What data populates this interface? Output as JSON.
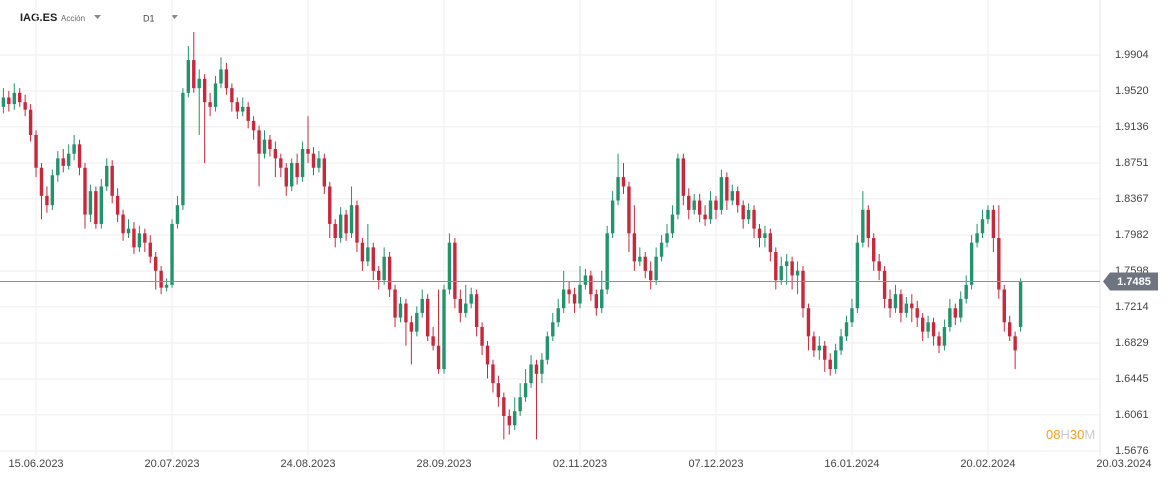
{
  "toolbar": {
    "symbol": "IAG.ES",
    "kind": "Acción",
    "timeframe": "D1"
  },
  "countdown": [
    "08",
    "H",
    "30",
    "M"
  ],
  "chart_data": {
    "type": "candlestick",
    "up_color": "#22936a",
    "down_color": "#c8283c",
    "last_price": 1.7485,
    "xlim": [
      -0.625,
      201.6
    ],
    "xticks": [
      {
        "value": 6,
        "label": "15.06.2023"
      },
      {
        "value": 31,
        "label": "20.07.2023"
      },
      {
        "value": 56,
        "label": "24.08.2023"
      },
      {
        "value": 81,
        "label": "28.09.2023"
      },
      {
        "value": 106,
        "label": "02.11.2023"
      },
      {
        "value": 131,
        "label": "07.12.2023"
      },
      {
        "value": 156,
        "label": "16.01.2024"
      },
      {
        "value": 181,
        "label": "20.02.2024"
      },
      {
        "value": 206,
        "label": "20.03.2024"
      }
    ],
    "ylim": [
      1.5633,
      2.0491
    ],
    "yticks": [
      1.5676,
      1.6061,
      1.6445,
      1.6829,
      1.7214,
      1.7598,
      1.7982,
      1.8367,
      1.8751,
      1.9136,
      {
        "value": 1.952,
        "label": "1.9520"
      },
      1.9904
    ],
    "ohlc": [
      [
        1.935,
        1.955,
        1.928,
        1.945
      ],
      [
        1.945,
        1.952,
        1.93,
        1.938
      ],
      [
        1.938,
        1.96,
        1.932,
        1.95
      ],
      [
        1.95,
        1.955,
        1.935,
        1.94
      ],
      [
        1.94,
        1.948,
        1.925,
        1.932
      ],
      [
        1.932,
        1.938,
        1.898,
        1.905
      ],
      [
        1.905,
        1.91,
        1.86,
        1.87
      ],
      [
        1.87,
        1.875,
        1.815,
        1.84
      ],
      [
        1.84,
        1.85,
        1.822,
        1.83
      ],
      [
        1.83,
        1.868,
        1.825,
        1.862
      ],
      [
        1.862,
        1.888,
        1.855,
        1.88
      ],
      [
        1.88,
        1.89,
        1.865,
        1.872
      ],
      [
        1.872,
        1.895,
        1.868,
        1.885
      ],
      [
        1.885,
        1.905,
        1.878,
        1.895
      ],
      [
        1.895,
        1.9,
        1.862,
        1.87
      ],
      [
        1.87,
        1.875,
        1.805,
        1.82
      ],
      [
        1.82,
        1.852,
        1.812,
        1.845
      ],
      [
        1.845,
        1.85,
        1.805,
        1.81
      ],
      [
        1.81,
        1.858,
        1.805,
        1.85
      ],
      [
        1.85,
        1.88,
        1.845,
        1.872
      ],
      [
        1.872,
        1.878,
        1.832,
        1.84
      ],
      [
        1.84,
        1.848,
        1.812,
        1.82
      ],
      [
        1.82,
        1.825,
        1.792,
        1.8
      ],
      [
        1.8,
        1.815,
        1.795,
        1.805
      ],
      [
        1.805,
        1.812,
        1.778,
        1.785
      ],
      [
        1.785,
        1.808,
        1.78,
        1.8
      ],
      [
        1.8,
        1.805,
        1.78,
        1.79
      ],
      [
        1.79,
        1.798,
        1.768,
        1.775
      ],
      [
        1.775,
        1.78,
        1.74,
        1.76
      ],
      [
        1.76,
        1.765,
        1.735,
        1.742
      ],
      [
        1.742,
        1.752,
        1.738,
        1.745
      ],
      [
        1.745,
        1.815,
        1.742,
        1.81
      ],
      [
        1.81,
        1.84,
        1.805,
        1.83
      ],
      [
        1.83,
        1.955,
        1.825,
        1.95
      ],
      [
        1.95,
        2.0,
        1.945,
        1.985
      ],
      [
        1.985,
        2.015,
        1.95,
        1.955
      ],
      [
        1.955,
        1.975,
        1.905,
        1.965
      ],
      [
        1.965,
        1.97,
        1.875,
        1.94
      ],
      [
        1.94,
        1.95,
        1.925,
        1.935
      ],
      [
        1.935,
        1.968,
        1.93,
        1.96
      ],
      [
        1.96,
        1.988,
        1.955,
        1.975
      ],
      [
        1.975,
        1.982,
        1.948,
        1.955
      ],
      [
        1.955,
        1.96,
        1.93,
        1.94
      ],
      [
        1.94,
        1.945,
        1.922,
        1.93
      ],
      [
        1.93,
        1.945,
        1.925,
        1.935
      ],
      [
        1.935,
        1.94,
        1.912,
        1.92
      ],
      [
        1.92,
        1.925,
        1.9,
        1.91
      ],
      [
        1.91,
        1.915,
        1.85,
        1.885
      ],
      [
        1.885,
        1.91,
        1.88,
        1.9
      ],
      [
        1.9,
        1.905,
        1.882,
        1.89
      ],
      [
        1.89,
        1.898,
        1.86,
        1.88
      ],
      [
        1.88,
        1.885,
        1.86,
        1.87
      ],
      [
        1.87,
        1.875,
        1.84,
        1.85
      ],
      [
        1.85,
        1.88,
        1.845,
        1.875
      ],
      [
        1.875,
        1.885,
        1.852,
        1.86
      ],
      [
        1.86,
        1.898,
        1.855,
        1.89
      ],
      [
        1.89,
        1.925,
        1.875,
        1.885
      ],
      [
        1.885,
        1.892,
        1.862,
        1.87
      ],
      [
        1.87,
        1.888,
        1.865,
        1.88
      ],
      [
        1.88,
        1.885,
        1.842,
        1.85
      ],
      [
        1.85,
        1.855,
        1.795,
        1.81
      ],
      [
        1.81,
        1.815,
        1.785,
        1.795
      ],
      [
        1.795,
        1.828,
        1.79,
        1.82
      ],
      [
        1.82,
        1.825,
        1.792,
        1.8
      ],
      [
        1.8,
        1.85,
        1.795,
        1.83
      ],
      [
        1.83,
        1.835,
        1.78,
        1.79
      ],
      [
        1.79,
        1.795,
        1.76,
        1.77
      ],
      [
        1.77,
        1.81,
        1.765,
        1.785
      ],
      [
        1.785,
        1.79,
        1.75,
        1.76
      ],
      [
        1.76,
        1.765,
        1.74,
        1.75
      ],
      [
        1.75,
        1.785,
        1.745,
        1.775
      ],
      [
        1.775,
        1.78,
        1.732,
        1.74
      ],
      [
        1.74,
        1.745,
        1.7,
        1.71
      ],
      [
        1.71,
        1.732,
        1.705,
        1.725
      ],
      [
        1.725,
        1.73,
        1.68,
        1.705
      ],
      [
        1.705,
        1.712,
        1.66,
        1.695
      ],
      [
        1.695,
        1.722,
        1.69,
        1.715
      ],
      [
        1.715,
        1.74,
        1.71,
        1.73
      ],
      [
        1.73,
        1.735,
        1.685,
        1.69
      ],
      [
        1.69,
        1.7,
        1.675,
        1.68
      ],
      [
        1.68,
        1.74,
        1.65,
        1.655
      ],
      [
        1.655,
        1.745,
        1.65,
        1.74
      ],
      [
        1.74,
        1.8,
        1.735,
        1.79
      ],
      [
        1.79,
        1.795,
        1.72,
        1.73
      ],
      [
        1.73,
        1.74,
        1.705,
        1.715
      ],
      [
        1.715,
        1.745,
        1.71,
        1.725
      ],
      [
        1.725,
        1.742,
        1.72,
        1.735
      ],
      [
        1.735,
        1.74,
        1.69,
        1.7
      ],
      [
        1.7,
        1.705,
        1.67,
        1.68
      ],
      [
        1.68,
        1.685,
        1.645,
        1.66
      ],
      [
        1.66,
        1.665,
        1.63,
        1.64
      ],
      [
        1.64,
        1.648,
        1.615,
        1.625
      ],
      [
        1.625,
        1.63,
        1.58,
        1.605
      ],
      [
        1.605,
        1.612,
        1.585,
        1.595
      ],
      [
        1.595,
        1.625,
        1.59,
        1.61
      ],
      [
        1.61,
        1.64,
        1.605,
        1.625
      ],
      [
        1.625,
        1.655,
        1.62,
        1.64
      ],
      [
        1.64,
        1.67,
        1.635,
        1.66
      ],
      [
        1.66,
        1.665,
        1.58,
        1.65
      ],
      [
        1.65,
        1.672,
        1.64,
        1.665
      ],
      [
        1.665,
        1.695,
        1.66,
        1.69
      ],
      [
        1.69,
        1.715,
        1.685,
        1.705
      ],
      [
        1.705,
        1.73,
        1.7,
        1.72
      ],
      [
        1.72,
        1.76,
        1.715,
        1.74
      ],
      [
        1.74,
        1.748,
        1.725,
        1.735
      ],
      [
        1.735,
        1.742,
        1.715,
        1.725
      ],
      [
        1.725,
        1.765,
        1.72,
        1.745
      ],
      [
        1.745,
        1.762,
        1.74,
        1.755
      ],
      [
        1.755,
        1.76,
        1.728,
        1.735
      ],
      [
        1.735,
        1.74,
        1.712,
        1.72
      ],
      [
        1.72,
        1.76,
        1.715,
        1.74
      ],
      [
        1.74,
        1.808,
        1.735,
        1.8
      ],
      [
        1.8,
        1.845,
        1.795,
        1.835
      ],
      [
        1.835,
        1.885,
        1.83,
        1.86
      ],
      [
        1.86,
        1.875,
        1.842,
        1.85
      ],
      [
        1.85,
        1.855,
        1.78,
        1.8
      ],
      [
        1.8,
        1.83,
        1.76,
        1.77
      ],
      [
        1.77,
        1.785,
        1.765,
        1.775
      ],
      [
        1.775,
        1.78,
        1.752,
        1.76
      ],
      [
        1.76,
        1.77,
        1.74,
        1.75
      ],
      [
        1.75,
        1.785,
        1.745,
        1.775
      ],
      [
        1.775,
        1.798,
        1.77,
        1.79
      ],
      [
        1.79,
        1.81,
        1.785,
        1.8
      ],
      [
        1.8,
        1.83,
        1.795,
        1.82
      ],
      [
        1.82,
        1.885,
        1.815,
        1.88
      ],
      [
        1.88,
        1.885,
        1.83,
        1.84
      ],
      [
        1.84,
        1.848,
        1.815,
        1.825
      ],
      [
        1.825,
        1.842,
        1.82,
        1.835
      ],
      [
        1.835,
        1.842,
        1.812,
        1.82
      ],
      [
        1.82,
        1.83,
        1.808,
        1.815
      ],
      [
        1.815,
        1.845,
        1.81,
        1.835
      ],
      [
        1.835,
        1.84,
        1.815,
        1.825
      ],
      [
        1.825,
        1.868,
        1.82,
        1.86
      ],
      [
        1.86,
        1.865,
        1.825,
        1.835
      ],
      [
        1.835,
        1.852,
        1.83,
        1.845
      ],
      [
        1.845,
        1.85,
        1.822,
        1.83
      ],
      [
        1.83,
        1.835,
        1.805,
        1.815
      ],
      [
        1.815,
        1.832,
        1.81,
        1.825
      ],
      [
        1.825,
        1.83,
        1.795,
        1.805
      ],
      [
        1.805,
        1.81,
        1.785,
        1.795
      ],
      [
        1.795,
        1.808,
        1.785,
        1.8
      ],
      [
        1.8,
        1.805,
        1.77,
        1.78
      ],
      [
        1.78,
        1.785,
        1.74,
        1.75
      ],
      [
        1.75,
        1.775,
        1.745,
        1.765
      ],
      [
        1.765,
        1.778,
        1.745,
        1.77
      ],
      [
        1.77,
        1.775,
        1.74,
        1.755
      ],
      [
        1.755,
        1.77,
        1.735,
        1.76
      ],
      [
        1.76,
        1.765,
        1.71,
        1.72
      ],
      [
        1.72,
        1.725,
        1.675,
        1.69
      ],
      [
        1.69,
        1.695,
        1.668,
        1.675
      ],
      [
        1.675,
        1.69,
        1.665,
        1.68
      ],
      [
        1.68,
        1.685,
        1.652,
        1.665
      ],
      [
        1.665,
        1.672,
        1.648,
        1.655
      ],
      [
        1.655,
        1.682,
        1.65,
        1.675
      ],
      [
        1.675,
        1.698,
        1.67,
        1.69
      ],
      [
        1.69,
        1.712,
        1.685,
        1.705
      ],
      [
        1.705,
        1.73,
        1.7,
        1.72
      ],
      [
        1.72,
        1.798,
        1.715,
        1.79
      ],
      [
        1.79,
        1.845,
        1.785,
        1.825
      ],
      [
        1.825,
        1.83,
        1.785,
        1.795
      ],
      [
        1.795,
        1.8,
        1.76,
        1.77
      ],
      [
        1.77,
        1.778,
        1.75,
        1.76
      ],
      [
        1.76,
        1.765,
        1.72,
        1.73
      ],
      [
        1.73,
        1.74,
        1.71,
        1.72
      ],
      [
        1.72,
        1.745,
        1.715,
        1.735
      ],
      [
        1.735,
        1.74,
        1.705,
        1.715
      ],
      [
        1.715,
        1.732,
        1.71,
        1.725
      ],
      [
        1.725,
        1.735,
        1.705,
        1.72
      ],
      [
        1.72,
        1.728,
        1.7,
        1.71
      ],
      [
        1.71,
        1.715,
        1.685,
        1.695
      ],
      [
        1.695,
        1.712,
        1.688,
        1.705
      ],
      [
        1.705,
        1.71,
        1.68,
        1.69
      ],
      [
        1.69,
        1.695,
        1.672,
        1.68
      ],
      [
        1.68,
        1.708,
        1.675,
        1.7
      ],
      [
        1.7,
        1.73,
        1.695,
        1.72
      ],
      [
        1.72,
        1.725,
        1.702,
        1.71
      ],
      [
        1.71,
        1.738,
        1.705,
        1.73
      ],
      [
        1.73,
        1.755,
        1.725,
        1.745
      ],
      [
        1.745,
        1.798,
        1.74,
        1.79
      ],
      [
        1.79,
        1.81,
        1.785,
        1.8
      ],
      [
        1.8,
        1.825,
        1.795,
        1.815
      ],
      [
        1.815,
        1.83,
        1.81,
        1.825
      ],
      [
        1.825,
        1.83,
        1.78,
        1.795
      ],
      [
        1.795,
        1.83,
        1.73,
        1.74
      ],
      [
        1.74,
        1.745,
        1.695,
        1.705
      ],
      [
        1.705,
        1.712,
        1.685,
        1.69
      ],
      [
        1.69,
        1.695,
        1.655,
        1.675
      ],
      [
        1.7,
        1.752,
        1.695,
        1.748
      ]
    ]
  }
}
